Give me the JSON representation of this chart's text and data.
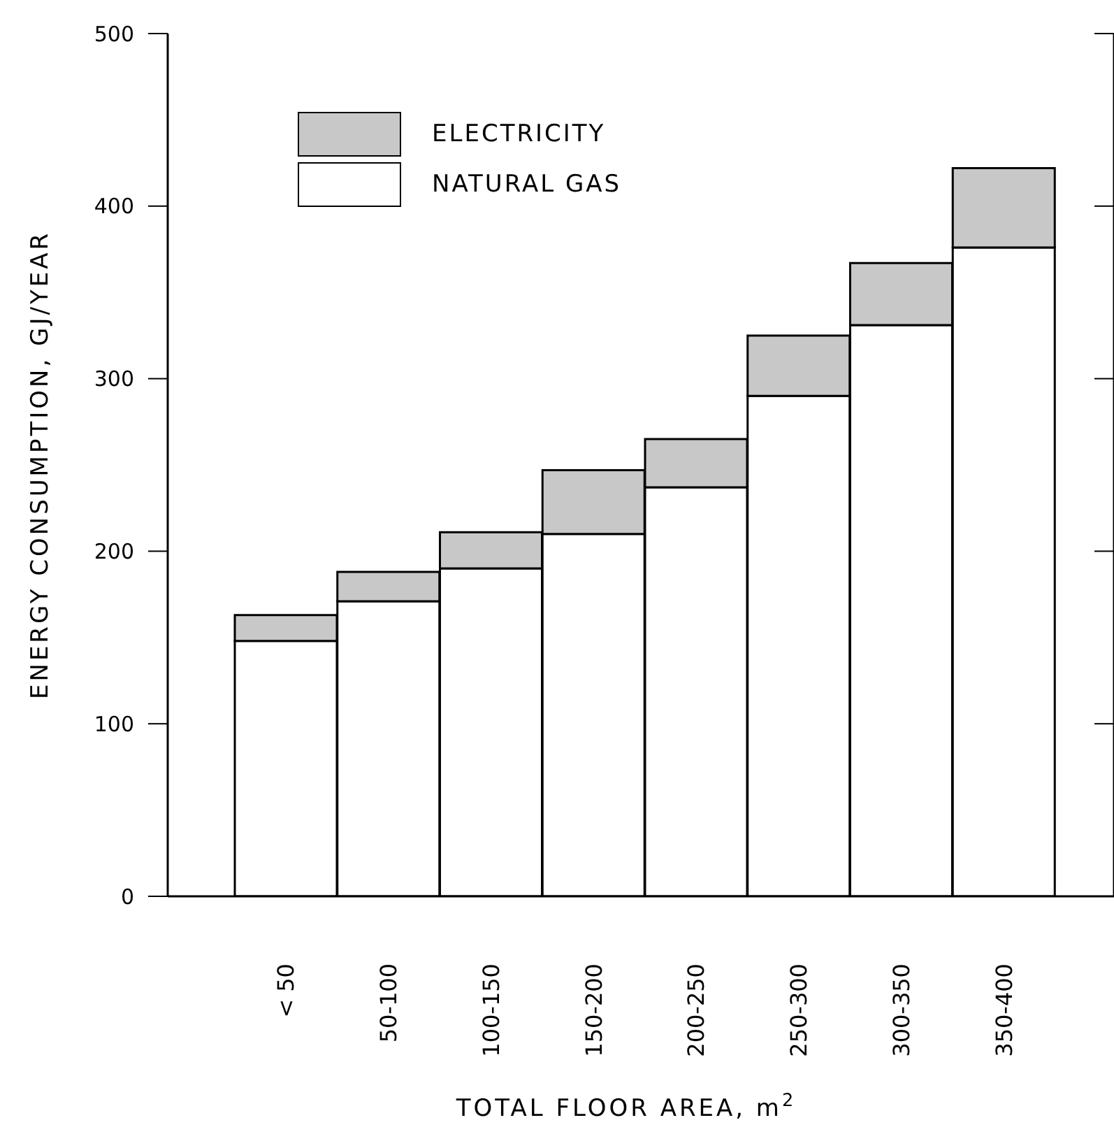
{
  "chart_data": {
    "type": "bar",
    "stacked": true,
    "xlabel": "TOTAL  FLOOR  AREA, m$^{2}$",
    "ylabel": "ENERGY  CONSUMPTION, GJ/YEAR",
    "categories": [
      "< 50",
      "50-100",
      "100-150",
      "150-200",
      "200-250",
      "250-300",
      "300-350",
      "350-400"
    ],
    "series": [
      {
        "name": "NATURAL GAS",
        "color": "#ffffff",
        "values": [
          148,
          171,
          190,
          210,
          237,
          290,
          331,
          376
        ]
      },
      {
        "name": "ELECTRICITY",
        "color": "#c8c8c8",
        "values": [
          15,
          17,
          21,
          37,
          28,
          35,
          36,
          46
        ]
      }
    ],
    "ylim": [
      0,
      500
    ],
    "yticks": [
      0,
      100,
      200,
      300,
      400,
      500
    ],
    "legend": "top left"
  }
}
